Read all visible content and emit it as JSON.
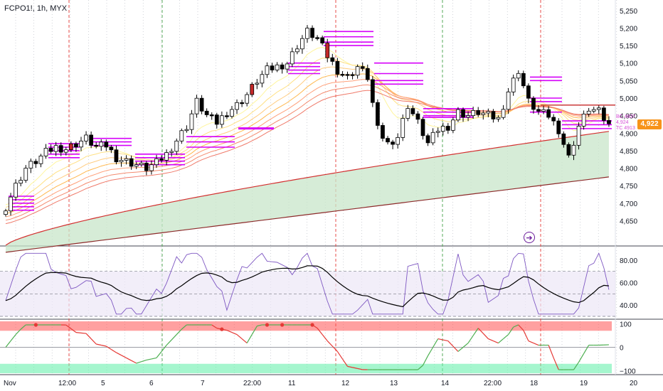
{
  "header": {
    "symbol_line": "FCPO1!, 1h, MYX"
  },
  "price_tag": "4,922",
  "micro_labels": [
    "BC 4937",
    "4,924",
    "TC 4913"
  ],
  "alert_icon": "alert-arrow-icon",
  "colors": {
    "bull": "#ffffff",
    "bear": "#000000",
    "red_candle": "#c62828",
    "pivot": "#d500f9",
    "ema_fast": "#f4c542",
    "ema_slow": "#e53935",
    "cloud": "#c8e6c9",
    "rsi": "#7e57c2",
    "rsi_ma": "#000000",
    "osc_up": "#4caf50",
    "osc_down": "#e53935",
    "price_tag": "#f7931a"
  },
  "chart_data": [
    {
      "type": "candlestick",
      "title": "FCPO1!, 1h, MYX",
      "ylim": [
        4580,
        5280
      ],
      "y_ticks": [
        4650,
        4700,
        4750,
        4800,
        4850,
        4900,
        4950,
        5000,
        5050,
        5100,
        5150,
        5200,
        5250
      ],
      "y_tick_labels": [
        "4,650",
        "4,700",
        "4,750",
        "4,800",
        "4,850",
        "4,900",
        "4,950",
        "5,000",
        "5,050",
        "5,100",
        "5,150",
        "5,200",
        "5,250"
      ],
      "x_ticks": [
        "Nov",
        "12:00",
        "5",
        "6",
        "7",
        "22:00",
        "11",
        "12",
        "13",
        "14",
        "22:00",
        "18",
        "19",
        "20"
      ],
      "close_points": [
        [
          0,
          4690
        ],
        [
          2,
          4750
        ],
        [
          4,
          4800
        ],
        [
          6,
          4820
        ],
        [
          8,
          4845
        ],
        [
          10,
          4860
        ],
        [
          12,
          4855
        ],
        [
          14,
          4870
        ],
        [
          16,
          4885
        ],
        [
          18,
          4860
        ],
        [
          20,
          4865
        ],
        [
          22,
          4830
        ],
        [
          24,
          4820
        ],
        [
          26,
          4810
        ],
        [
          28,
          4800
        ],
        [
          30,
          4815
        ],
        [
          32,
          4840
        ],
        [
          34,
          4880
        ],
        [
          36,
          4920
        ],
        [
          38,
          4990
        ],
        [
          40,
          4950
        ],
        [
          42,
          4930
        ],
        [
          44,
          4960
        ],
        [
          46,
          4980
        ],
        [
          48,
          5010
        ],
        [
          50,
          5050
        ],
        [
          52,
          5080
        ],
        [
          54,
          5090
        ],
        [
          56,
          5100
        ],
        [
          58,
          5150
        ],
        [
          60,
          5190
        ],
        [
          62,
          5170
        ],
        [
          64,
          5120
        ],
        [
          66,
          5080
        ],
        [
          68,
          5060
        ],
        [
          70,
          5090
        ],
        [
          72,
          5060
        ],
        [
          74,
          4910
        ],
        [
          76,
          4870
        ],
        [
          78,
          4890
        ],
        [
          80,
          4980
        ],
        [
          82,
          4930
        ],
        [
          84,
          4870
        ],
        [
          86,
          4910
        ],
        [
          88,
          4920
        ],
        [
          90,
          4960
        ],
        [
          92,
          4950
        ],
        [
          94,
          4960
        ],
        [
          96,
          4950
        ],
        [
          98,
          4940
        ],
        [
          100,
          5020
        ],
        [
          102,
          5080
        ],
        [
          104,
          4990
        ],
        [
          106,
          4960
        ],
        [
          108,
          4950
        ],
        [
          110,
          4910
        ],
        [
          112,
          4830
        ],
        [
          114,
          4920
        ],
        [
          116,
          4970
        ],
        [
          118,
          4960
        ],
        [
          120,
          4922
        ]
      ],
      "emas": {
        "ribbon_start": [
          4700,
          4690,
          4680,
          4670,
          4660,
          4650,
          4640
        ],
        "ema200_start": 4580,
        "ema200_end": 4905,
        "ema400_start": 4560,
        "ema400_end": 4775
      }
    },
    {
      "type": "line",
      "name": "RSI",
      "ylim": [
        30,
        90
      ],
      "y_ticks": [
        40,
        60,
        80
      ],
      "y_tick_labels": [
        "40.00",
        "60.00",
        "80.00"
      ],
      "bands": [
        30,
        70,
        50
      ]
    },
    {
      "type": "line",
      "name": "Oscillator",
      "ylim": [
        -110,
        110
      ],
      "y_ticks": [
        -100,
        0,
        100
      ],
      "y_tick_labels": [
        "−100",
        "0",
        "100"
      ]
    }
  ]
}
